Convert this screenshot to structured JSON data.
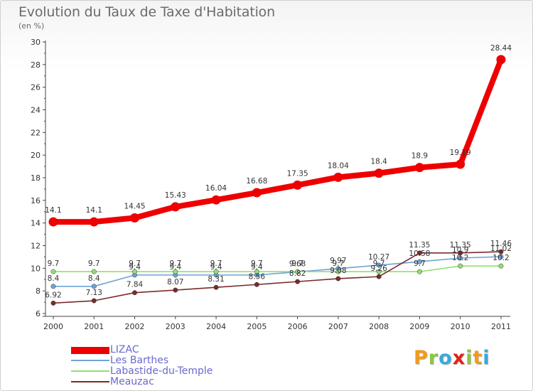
{
  "title": "Evolution du Taux de Taxe d'Habitation",
  "unit_label": "(en %)",
  "logo": {
    "text": "Proxiti",
    "letters": [
      {
        "ch": "P",
        "color": "#f29a1c"
      },
      {
        "ch": "r",
        "color": "#8cc63f"
      },
      {
        "ch": "o",
        "color": "#39a9dc"
      },
      {
        "ch": "x",
        "color": "#e2231a"
      },
      {
        "ch": "i",
        "color": "#8cc63f"
      },
      {
        "ch": "t",
        "color": "#f29a1c"
      },
      {
        "ch": "i",
        "color": "#39a9dc"
      }
    ]
  },
  "chart_data": {
    "type": "line",
    "x": [
      "2000",
      "2001",
      "2002",
      "2003",
      "2004",
      "2005",
      "2006",
      "2007",
      "2008",
      "2009",
      "2010",
      "2011"
    ],
    "ylim": [
      6,
      30
    ],
    "yticks": [
      6,
      8,
      10,
      12,
      14,
      16,
      18,
      20,
      22,
      24,
      26,
      28,
      30
    ],
    "grid": false,
    "legend_position": "bottom-left",
    "series": [
      {
        "name": "LIZAC",
        "color": "#ee0000",
        "values": [
          14.1,
          14.1,
          14.45,
          15.43,
          16.04,
          16.68,
          17.35,
          18.04,
          18.4,
          18.9,
          19.19,
          28.44
        ],
        "labels": [
          "14.1",
          "14.1",
          "14.45",
          "15.43",
          "16.04",
          "16.68",
          "17.35",
          "18.04",
          "18.4",
          "18.9",
          "19.19",
          "28.44"
        ]
      },
      {
        "name": "Les Barthes",
        "color": "#6fa3d6",
        "values": [
          8.4,
          8.4,
          9.4,
          9.4,
          9.4,
          9.4,
          9.68,
          9.97,
          10.27,
          10.58,
          10.9,
          11.02
        ],
        "labels": [
          "8.4",
          "8.4",
          "9.4",
          "9.4",
          "9.4",
          "9.4",
          "9.68",
          "9.97",
          "10.27",
          "10.58",
          "10.9",
          "11.02"
        ]
      },
      {
        "name": "Labastide-du-Temple",
        "color": "#90e070",
        "values": [
          9.7,
          9.7,
          9.7,
          9.7,
          9.7,
          9.7,
          9.7,
          9.7,
          9.7,
          9.7,
          10.2,
          10.2
        ],
        "labels": [
          "9.7",
          "9.7",
          "9.7",
          "9.7",
          "9.7",
          "9.7",
          "9.7",
          "9.7",
          "9.7",
          "9.7",
          "10.2",
          "10.2"
        ]
      },
      {
        "name": "Meauzac",
        "color": "#7a2b2b",
        "values": [
          6.92,
          7.13,
          7.84,
          8.07,
          8.31,
          8.56,
          8.82,
          9.08,
          9.26,
          11.35,
          11.35,
          11.46
        ],
        "labels": [
          "6.92",
          "7.13",
          "7.84",
          "8.07",
          "8.31",
          "8.56",
          "8.82",
          "9.08",
          "9.26",
          "11.35",
          "11.35",
          "11.46"
        ]
      }
    ]
  }
}
